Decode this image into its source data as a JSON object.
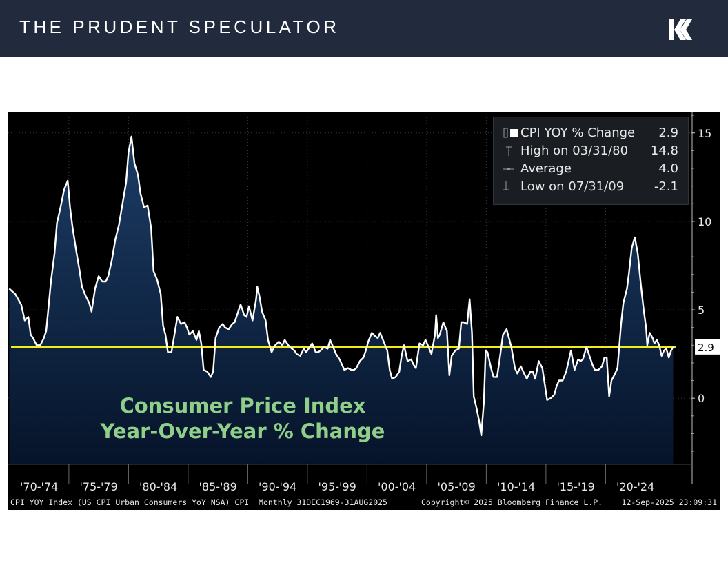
{
  "header": {
    "brand": "THE PRUDENT SPECULATOR",
    "logo_icon": "k-arrows-logo-icon"
  },
  "chart_data": {
    "type": "area",
    "title": "Consumer Price Index",
    "subtitle": "Year-Over-Year % Change",
    "x_range": [
      "1969-12-31",
      "2025-08-31"
    ],
    "x_tick_labels": [
      "'70-'74",
      "'75-'79",
      "'80-'84",
      "'85-'89",
      "'90-'94",
      "'95-'99",
      "'00-'04",
      "'05-'09",
      "'10-'14",
      "'15-'19",
      "'20-'24"
    ],
    "y_ticks": [
      15,
      10,
      5,
      0
    ],
    "ylim": [
      -3.7,
      16.2
    ],
    "y_axis_side": "right",
    "grid": true,
    "legend_position": "top-right",
    "colors": {
      "line": "#ffffff",
      "fill_top": "#1c3d66",
      "fill_bottom": "#06142a",
      "reference_line": "#f2ec1a",
      "grid": "#3a3a3a"
    },
    "reference_line": {
      "value": 2.9,
      "label": "2.9"
    },
    "legend": [
      {
        "marker": "square",
        "label": "CPI YOY % Change",
        "value": "2.9"
      },
      {
        "marker": "high",
        "label": "High on 03/31/80",
        "value": "14.8"
      },
      {
        "marker": "average",
        "label": "Average",
        "value": "4.0"
      },
      {
        "marker": "low",
        "label": "Low on 07/31/09",
        "value": "-2.1"
      }
    ],
    "series": [
      {
        "points": [
          [
            1970.0,
            6.2
          ],
          [
            1970.5,
            5.9
          ],
          [
            1971.0,
            5.3
          ],
          [
            1971.3,
            4.4
          ],
          [
            1971.6,
            4.6
          ],
          [
            1971.8,
            3.6
          ],
          [
            1972.0,
            3.4
          ],
          [
            1972.3,
            3.0
          ],
          [
            1972.6,
            3.0
          ],
          [
            1972.9,
            3.4
          ],
          [
            1973.1,
            3.8
          ],
          [
            1973.3,
            5.2
          ],
          [
            1973.5,
            6.6
          ],
          [
            1973.8,
            8.2
          ],
          [
            1974.0,
            9.9
          ],
          [
            1974.3,
            10.8
          ],
          [
            1974.6,
            11.8
          ],
          [
            1974.9,
            12.3
          ],
          [
            1975.1,
            10.8
          ],
          [
            1975.3,
            9.7
          ],
          [
            1975.6,
            8.4
          ],
          [
            1975.9,
            7.2
          ],
          [
            1976.1,
            6.3
          ],
          [
            1976.4,
            5.8
          ],
          [
            1976.7,
            5.4
          ],
          [
            1976.9,
            4.9
          ],
          [
            1977.2,
            6.2
          ],
          [
            1977.5,
            6.9
          ],
          [
            1977.8,
            6.6
          ],
          [
            1978.1,
            6.6
          ],
          [
            1978.3,
            6.9
          ],
          [
            1978.6,
            7.8
          ],
          [
            1978.9,
            9.0
          ],
          [
            1979.2,
            9.8
          ],
          [
            1979.5,
            11.0
          ],
          [
            1979.8,
            12.2
          ],
          [
            1980.0,
            13.9
          ],
          [
            1980.25,
            14.8
          ],
          [
            1980.5,
            13.3
          ],
          [
            1980.8,
            12.6
          ],
          [
            1981.0,
            11.6
          ],
          [
            1981.3,
            10.8
          ],
          [
            1981.6,
            10.9
          ],
          [
            1981.9,
            9.6
          ],
          [
            1982.1,
            7.2
          ],
          [
            1982.4,
            6.7
          ],
          [
            1982.7,
            5.9
          ],
          [
            1982.9,
            4.1
          ],
          [
            1983.1,
            3.6
          ],
          [
            1983.3,
            2.6
          ],
          [
            1983.6,
            2.6
          ],
          [
            1983.9,
            3.8
          ],
          [
            1984.1,
            4.6
          ],
          [
            1984.4,
            4.2
          ],
          [
            1984.7,
            4.3
          ],
          [
            1984.9,
            4.0
          ],
          [
            1985.1,
            3.6
          ],
          [
            1985.4,
            3.8
          ],
          [
            1985.7,
            3.3
          ],
          [
            1985.9,
            3.8
          ],
          [
            1986.1,
            3.1
          ],
          [
            1986.3,
            1.6
          ],
          [
            1986.6,
            1.5
          ],
          [
            1986.9,
            1.2
          ],
          [
            1987.1,
            1.5
          ],
          [
            1987.3,
            3.4
          ],
          [
            1987.6,
            4.0
          ],
          [
            1987.9,
            4.2
          ],
          [
            1988.1,
            4.0
          ],
          [
            1988.4,
            3.9
          ],
          [
            1988.7,
            4.2
          ],
          [
            1988.9,
            4.3
          ],
          [
            1989.1,
            4.7
          ],
          [
            1989.4,
            5.3
          ],
          [
            1989.7,
            4.7
          ],
          [
            1989.9,
            4.6
          ],
          [
            1990.1,
            5.2
          ],
          [
            1990.4,
            4.4
          ],
          [
            1990.7,
            5.6
          ],
          [
            1990.8,
            6.3
          ],
          [
            1991.0,
            5.7
          ],
          [
            1991.2,
            4.9
          ],
          [
            1991.5,
            4.4
          ],
          [
            1991.7,
            3.3
          ],
          [
            1992.0,
            2.6
          ],
          [
            1992.3,
            3.0
          ],
          [
            1992.6,
            3.2
          ],
          [
            1992.9,
            3.0
          ],
          [
            1993.1,
            3.3
          ],
          [
            1993.4,
            3.0
          ],
          [
            1993.7,
            2.8
          ],
          [
            1993.9,
            2.7
          ],
          [
            1994.1,
            2.5
          ],
          [
            1994.4,
            2.4
          ],
          [
            1994.7,
            2.8
          ],
          [
            1994.9,
            2.6
          ],
          [
            1995.1,
            2.8
          ],
          [
            1995.4,
            3.1
          ],
          [
            1995.7,
            2.6
          ],
          [
            1995.9,
            2.6
          ],
          [
            1996.1,
            2.7
          ],
          [
            1996.4,
            2.9
          ],
          [
            1996.7,
            2.8
          ],
          [
            1996.9,
            3.3
          ],
          [
            1997.1,
            3.0
          ],
          [
            1997.4,
            2.5
          ],
          [
            1997.7,
            2.2
          ],
          [
            1997.9,
            1.9
          ],
          [
            1998.1,
            1.6
          ],
          [
            1998.4,
            1.7
          ],
          [
            1998.7,
            1.6
          ],
          [
            1998.9,
            1.6
          ],
          [
            1999.1,
            1.7
          ],
          [
            1999.4,
            2.1
          ],
          [
            1999.7,
            2.3
          ],
          [
            1999.9,
            2.7
          ],
          [
            2000.1,
            3.2
          ],
          [
            2000.4,
            3.7
          ],
          [
            2000.7,
            3.5
          ],
          [
            2000.9,
            3.4
          ],
          [
            2001.1,
            3.7
          ],
          [
            2001.4,
            3.2
          ],
          [
            2001.7,
            2.7
          ],
          [
            2001.9,
            1.6
          ],
          [
            2002.1,
            1.1
          ],
          [
            2002.4,
            1.2
          ],
          [
            2002.7,
            1.5
          ],
          [
            2002.9,
            2.4
          ],
          [
            2003.1,
            3.0
          ],
          [
            2003.4,
            2.1
          ],
          [
            2003.7,
            2.2
          ],
          [
            2003.9,
            1.9
          ],
          [
            2004.1,
            1.7
          ],
          [
            2004.4,
            3.1
          ],
          [
            2004.7,
            3.0
          ],
          [
            2004.9,
            3.3
          ],
          [
            2005.1,
            3.0
          ],
          [
            2005.4,
            2.5
          ],
          [
            2005.7,
            3.6
          ],
          [
            2005.8,
            4.7
          ],
          [
            2005.95,
            3.4
          ],
          [
            2006.1,
            3.6
          ],
          [
            2006.4,
            4.3
          ],
          [
            2006.7,
            3.8
          ],
          [
            2006.9,
            1.3
          ],
          [
            2007.1,
            2.4
          ],
          [
            2007.4,
            2.7
          ],
          [
            2007.7,
            2.8
          ],
          [
            2007.9,
            4.3
          ],
          [
            2008.1,
            4.3
          ],
          [
            2008.4,
            4.2
          ],
          [
            2008.6,
            5.6
          ],
          [
            2008.8,
            3.7
          ],
          [
            2008.95,
            0.1
          ],
          [
            2009.2,
            -0.6
          ],
          [
            2009.4,
            -1.3
          ],
          [
            2009.58,
            -2.1
          ],
          [
            2009.8,
            -0.2
          ],
          [
            2009.95,
            2.7
          ],
          [
            2010.1,
            2.6
          ],
          [
            2010.4,
            1.7
          ],
          [
            2010.6,
            1.2
          ],
          [
            2010.9,
            1.2
          ],
          [
            2011.1,
            2.1
          ],
          [
            2011.4,
            3.6
          ],
          [
            2011.7,
            3.9
          ],
          [
            2011.9,
            3.4
          ],
          [
            2012.1,
            2.9
          ],
          [
            2012.4,
            1.7
          ],
          [
            2012.6,
            1.4
          ],
          [
            2012.9,
            1.8
          ],
          [
            2013.1,
            1.5
          ],
          [
            2013.4,
            1.1
          ],
          [
            2013.7,
            1.5
          ],
          [
            2013.9,
            1.5
          ],
          [
            2014.1,
            1.1
          ],
          [
            2014.4,
            2.1
          ],
          [
            2014.7,
            1.7
          ],
          [
            2014.9,
            0.8
          ],
          [
            2015.1,
            -0.1
          ],
          [
            2015.4,
            0.0
          ],
          [
            2015.7,
            0.2
          ],
          [
            2015.9,
            0.7
          ],
          [
            2016.1,
            1.0
          ],
          [
            2016.4,
            1.0
          ],
          [
            2016.7,
            1.5
          ],
          [
            2016.9,
            2.1
          ],
          [
            2017.1,
            2.7
          ],
          [
            2017.4,
            1.6
          ],
          [
            2017.7,
            2.2
          ],
          [
            2017.9,
            2.1
          ],
          [
            2018.1,
            2.2
          ],
          [
            2018.4,
            2.9
          ],
          [
            2018.7,
            2.3
          ],
          [
            2018.9,
            1.9
          ],
          [
            2019.1,
            1.6
          ],
          [
            2019.4,
            1.6
          ],
          [
            2019.7,
            1.8
          ],
          [
            2019.9,
            2.3
          ],
          [
            2020.1,
            2.3
          ],
          [
            2020.3,
            0.1
          ],
          [
            2020.5,
            1.0
          ],
          [
            2020.8,
            1.4
          ],
          [
            2021.0,
            1.7
          ],
          [
            2021.3,
            4.2
          ],
          [
            2021.5,
            5.4
          ],
          [
            2021.8,
            6.2
          ],
          [
            2021.95,
            7.0
          ],
          [
            2022.2,
            8.5
          ],
          [
            2022.45,
            9.1
          ],
          [
            2022.7,
            8.2
          ],
          [
            2022.95,
            6.5
          ],
          [
            2023.2,
            5.0
          ],
          [
            2023.4,
            4.0
          ],
          [
            2023.5,
            3.0
          ],
          [
            2023.7,
            3.7
          ],
          [
            2023.95,
            3.4
          ],
          [
            2024.1,
            3.1
          ],
          [
            2024.3,
            3.3
          ],
          [
            2024.5,
            3.0
          ],
          [
            2024.7,
            2.4
          ],
          [
            2024.9,
            2.7
          ],
          [
            2025.1,
            2.8
          ],
          [
            2025.3,
            2.3
          ],
          [
            2025.5,
            2.7
          ],
          [
            2025.67,
            2.9
          ]
        ]
      }
    ]
  },
  "footnote": {
    "description": "CPI YOY Index (US CPI Urban Consumers YoY NSA) CPI  Monthly 31DEC1969-31AUG2025",
    "copyright": "Copyright© 2025 Bloomberg Finance L.P.",
    "timestamp": "12-Sep-2025 23:09:31"
  }
}
